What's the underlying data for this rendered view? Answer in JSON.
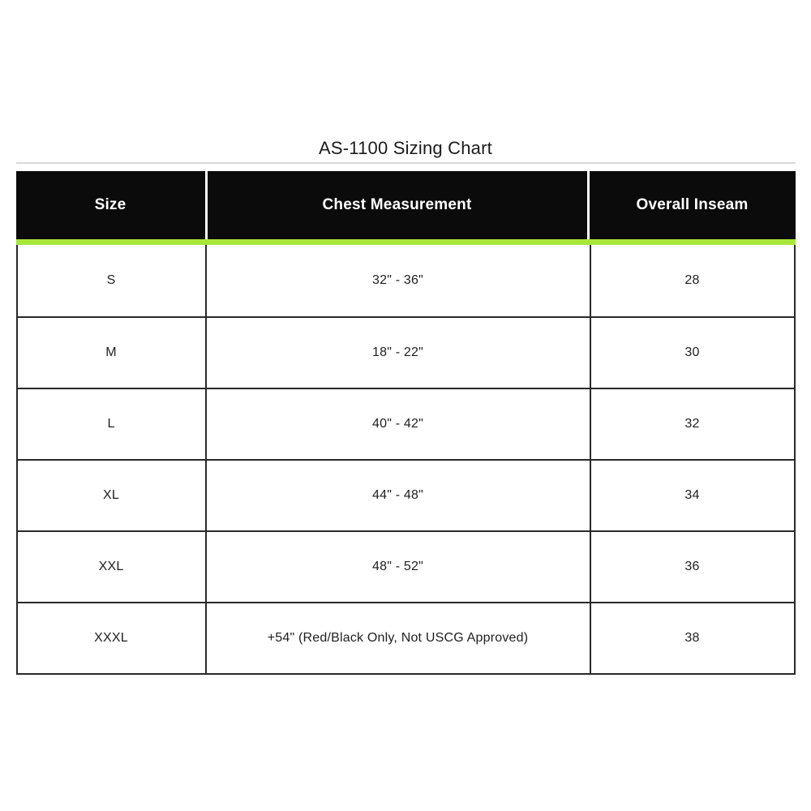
{
  "title": "AS-1100 Sizing Chart",
  "colors": {
    "header_background": "#0b0b0b",
    "header_text": "#ffffff",
    "accent_green": "#a8e63a",
    "border_dark": "#292929",
    "top_rule_gray": "#d9d9d9",
    "body_text": "#1f1f1f",
    "page_background": "#ffffff"
  },
  "chart_data": {
    "type": "table",
    "title": "AS-1100 Sizing Chart",
    "columns": [
      "Size",
      "Chest Measurement",
      "Overall Inseam"
    ],
    "rows": [
      [
        "S",
        "32\" - 36\"",
        "28"
      ],
      [
        "M",
        "18\" - 22\"",
        "30"
      ],
      [
        "L",
        "40\" - 42\"",
        "32"
      ],
      [
        "XL",
        "44\" - 48\"",
        "34"
      ],
      [
        "XXL",
        "48\" - 52\"",
        "36"
      ],
      [
        "XXXL",
        "+54\" (Red/Black Only, Not USCG Approved)",
        "38"
      ]
    ]
  }
}
